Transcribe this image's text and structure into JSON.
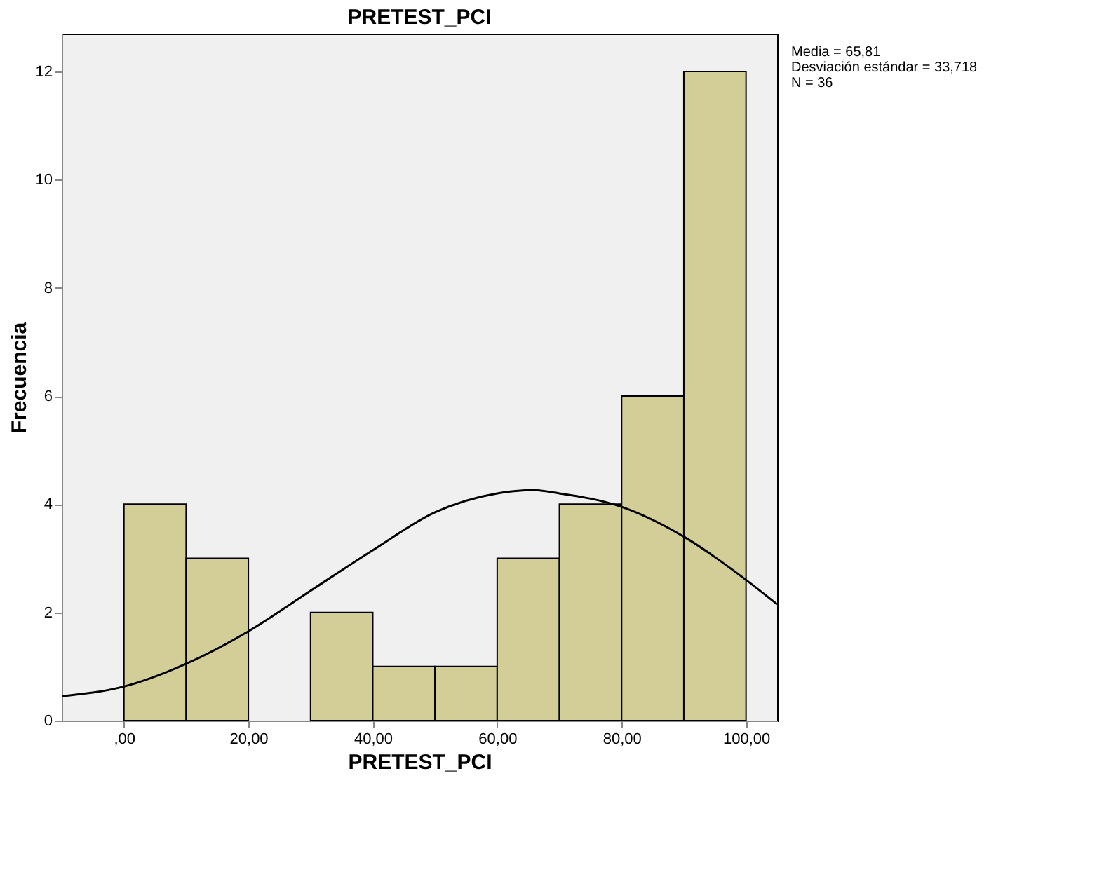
{
  "chart_data": {
    "type": "histogram",
    "title": "PRETEST_PCI",
    "xlabel": "PRETEST_PCI",
    "ylabel": "Frecuencia",
    "bins": [
      0,
      10,
      20,
      30,
      40,
      50,
      60,
      70,
      80,
      90,
      100
    ],
    "values": [
      4,
      3,
      0,
      2,
      1,
      1,
      3,
      4,
      6,
      12
    ],
    "color": "#d3ce97",
    "series": [
      {
        "type": "line",
        "color": "#000000",
        "x": [
          -10,
          0,
          10,
          20,
          30,
          40,
          50,
          60,
          65.8,
          70,
          80,
          90,
          100,
          105
        ],
        "values": [
          0.45,
          0.63,
          1.05,
          1.65,
          2.4,
          3.15,
          3.85,
          4.2,
          4.26,
          4.2,
          3.95,
          3.4,
          2.6,
          2.15
        ]
      }
    ],
    "xlim": [
      -10,
      105
    ],
    "ylim": [
      0,
      12.7
    ],
    "xticks": [
      {
        "value": 0,
        "label": ",00"
      },
      {
        "value": 20,
        "label": "20,00"
      },
      {
        "value": 40,
        "label": "40,00"
      },
      {
        "value": 60,
        "label": "60,00"
      },
      {
        "value": 80,
        "label": "80,00"
      },
      {
        "value": 100,
        "label": "100,00"
      }
    ],
    "yticks": [
      0,
      2,
      4,
      6,
      8,
      10,
      12
    ],
    "grid": false,
    "annotations": [
      "Media = 65,81",
      "Desviación estándar = 33,718",
      "N = 36"
    ]
  }
}
